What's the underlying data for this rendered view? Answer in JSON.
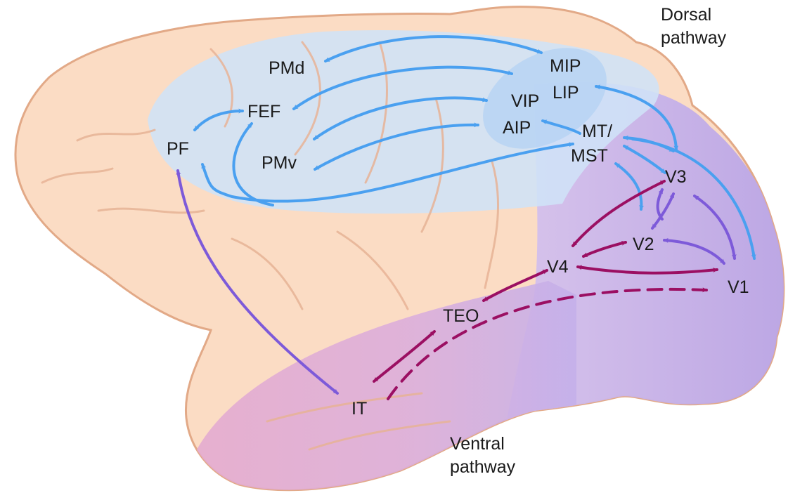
{
  "labels": {
    "dorsal_line1": "Dorsal",
    "dorsal_line2": "pathway",
    "ventral_line1": "Ventral",
    "ventral_line2": "pathway"
  },
  "areas": {
    "pmd": "PMd",
    "mip": "MIP",
    "lip": "LIP",
    "fef": "FEF",
    "vip": "VIP",
    "aip": "AIP",
    "pf": "PF",
    "pmv": "PMv",
    "mt": "MT/",
    "mst": "MST",
    "v3": "V3",
    "v2": "V2",
    "v4": "V4",
    "v1": "V1",
    "teo": "TEO",
    "it": "IT"
  },
  "colors": {
    "brain_fill": "#fbdcc4",
    "brain_outline": "#e2a987",
    "sulcus": "#e9b699",
    "dorsal_region": "#cfe2f7",
    "ventral_region": "#e7b4d5",
    "occipital_region": "#c9b7ec",
    "dorsal_arrow": "#4aa0f0",
    "ventral_arrow": "#9b0f62",
    "mixed_arrow": "#7d5ad9"
  }
}
